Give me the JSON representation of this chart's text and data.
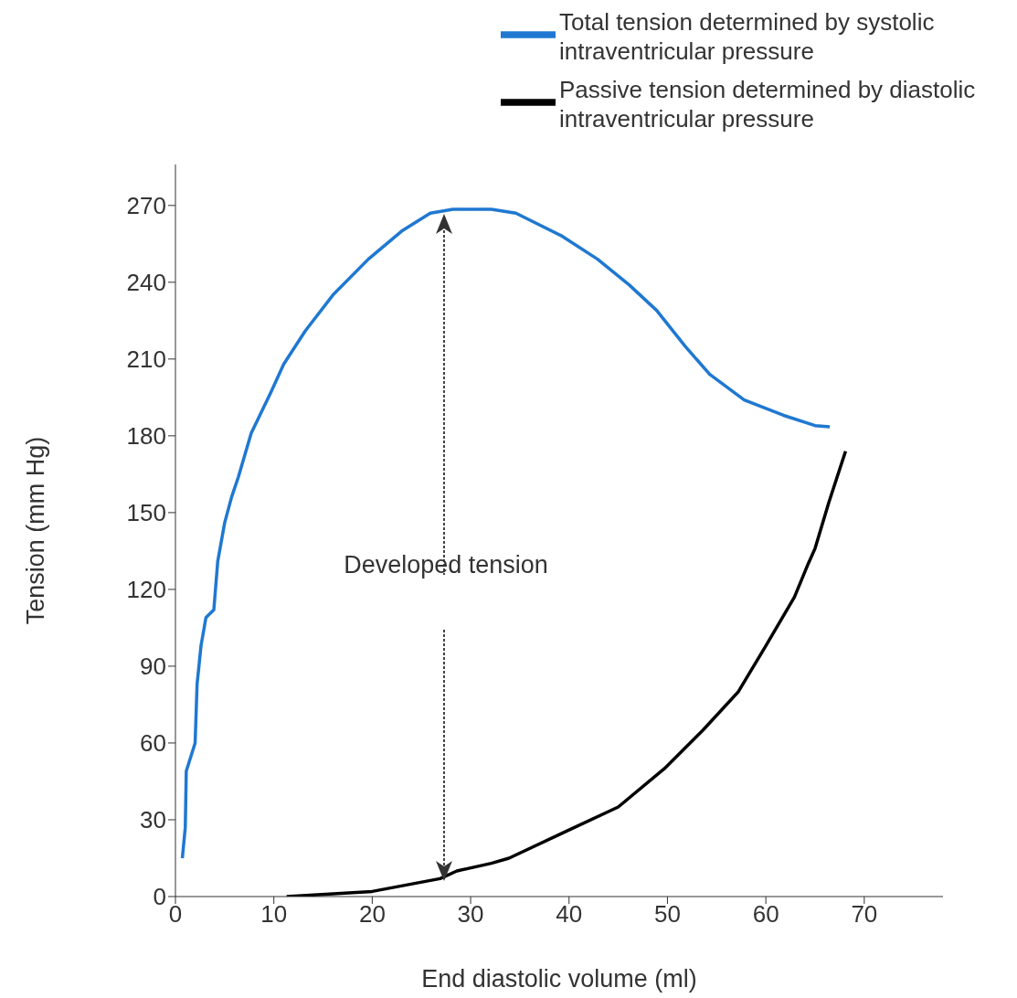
{
  "chart_data": {
    "type": "line",
    "xlabel": "End diastolic volume (ml)",
    "ylabel": "Tension (mm Hg)",
    "xlim": [
      0,
      78
    ],
    "ylim": [
      0,
      286
    ],
    "xticks": [
      0,
      10,
      20,
      30,
      40,
      50,
      60,
      70
    ],
    "yticks": [
      0,
      30,
      60,
      90,
      120,
      150,
      180,
      210,
      240,
      270
    ],
    "grid": false,
    "legend": "top right",
    "marker": "none",
    "line_style": "solid",
    "annotations": [
      "Developed tension"
    ],
    "series": [
      {
        "name": "Total tension determined by systolic intraventricular pressure",
        "color": "#1f78d1",
        "x": [
          0.7,
          1,
          1.1,
          2,
          2.2,
          2.6,
          3.1,
          3.9,
          4.3,
          5,
          5.7,
          6.4,
          7.7,
          9.7,
          11,
          13.2,
          16,
          19.6,
          23,
          25.9,
          28.2,
          32.1,
          34.6,
          39.3,
          42.9,
          46.1,
          48.9,
          51.8,
          54.3,
          57.8,
          61.8,
          65,
          66.5
        ],
        "values": [
          15,
          27,
          49,
          60,
          83,
          98,
          109,
          112,
          131,
          146,
          156,
          164,
          181,
          197,
          208,
          221,
          235,
          249,
          260,
          267,
          268.5,
          268.5,
          267,
          258,
          249,
          239,
          229,
          215,
          204,
          194,
          188,
          184,
          183.5
        ]
      },
      {
        "name": "Passive tension determined by diastolic intraventricular pressure",
        "color": "#000000",
        "x": [
          11.3,
          20,
          26.9,
          28.6,
          32.1,
          33.9,
          40,
          45,
          49.7,
          53.6,
          57.2,
          60,
          62.9,
          64.3,
          65,
          66.4,
          68.1
        ],
        "values": [
          0,
          2,
          7,
          10,
          13,
          15,
          26,
          35,
          50,
          65,
          80,
          98,
          117,
          130,
          136,
          154,
          174
        ]
      }
    ]
  }
}
